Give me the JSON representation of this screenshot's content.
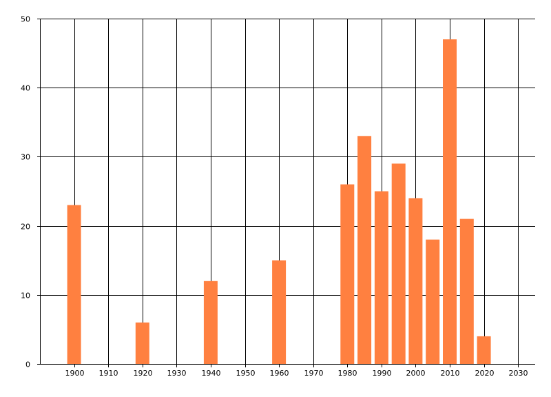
{
  "chart_data": {
    "type": "bar",
    "title": "",
    "xlabel": "",
    "ylabel": "",
    "x": [
      1900,
      1920,
      1940,
      1960,
      1980,
      1985,
      1990,
      1995,
      2000,
      2005,
      2010,
      2015,
      2020
    ],
    "values": [
      23,
      6,
      12,
      15,
      26,
      33,
      25,
      29,
      24,
      18,
      47,
      21,
      4
    ],
    "xlim": [
      1890,
      2035
    ],
    "ylim": [
      0,
      50
    ],
    "x_ticks": [
      1900,
      1910,
      1920,
      1930,
      1940,
      1950,
      1960,
      1970,
      1980,
      1990,
      2000,
      2010,
      2020,
      2030
    ],
    "y_ticks": [
      0,
      10,
      20,
      30,
      40,
      50
    ],
    "grid": true,
    "legend": "none",
    "bar_color": "#ff8040",
    "grid_color": "#000000"
  }
}
